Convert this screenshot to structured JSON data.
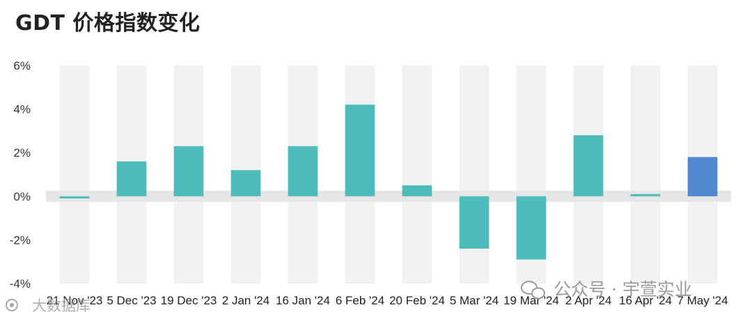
{
  "title": "GDT 价格指数变化",
  "chart_data": {
    "type": "bar",
    "title": "GDT 价格指数变化",
    "xlabel": "",
    "ylabel": "",
    "ylim": [
      -4,
      6
    ],
    "yticks": [
      "6%",
      "4%",
      "2%",
      "0%",
      "-2%",
      "-4%"
    ],
    "ytick_values": [
      6,
      4,
      2,
      0,
      -2,
      -4
    ],
    "categories": [
      "21 Nov '23",
      "5 Dec '23",
      "19 Dec '23",
      "2 Jan '24",
      "16 Jan '24",
      "6 Feb '24",
      "20 Feb '24",
      "5 Mar '24",
      "19 Mar '24",
      "2 Apr '24",
      "16 Apr '24",
      "7 May '24"
    ],
    "values": [
      -0.1,
      1.6,
      2.3,
      1.2,
      2.3,
      4.2,
      0.5,
      -2.4,
      -2.9,
      2.8,
      0.1,
      1.8
    ],
    "grid": false,
    "colors": {
      "bar": "#4dbcbb",
      "highlight": "#5089d2",
      "band": "#f2f2f2",
      "zero_band": "#e6e6e6"
    },
    "highlight_index": 11
  },
  "watermarks": {
    "right": "公众号 · 宇萱实业",
    "left": "大数据库",
    "right_icon": "wechat-icon",
    "left_icon": "app-logo-icon"
  }
}
